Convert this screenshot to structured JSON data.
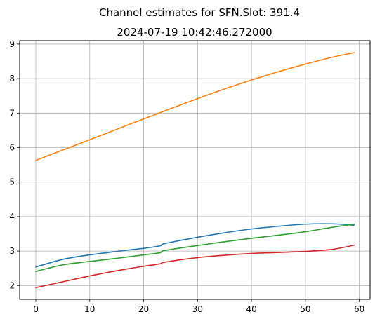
{
  "chart_data": {
    "type": "line",
    "suptitle": "Channel estimates for SFN.Slot: 391.4",
    "title": "2024-07-19 10:42:46.272000",
    "xlabel": "",
    "ylabel": "",
    "xlim": [
      -3,
      62
    ],
    "ylim": [
      1.6,
      9.1
    ],
    "xticks": [
      0,
      10,
      20,
      30,
      40,
      50,
      60
    ],
    "yticks": [
      2,
      3,
      4,
      5,
      6,
      7,
      8,
      9
    ],
    "grid": true,
    "legend": false,
    "colors": [
      "#1f77b4",
      "#ff7f0e",
      "#2ca02c",
      "#d62728"
    ],
    "x": [
      0,
      5,
      10,
      15,
      20,
      23,
      24,
      30,
      35,
      40,
      45,
      50,
      55,
      59
    ],
    "series": [
      {
        "values": [
          2.54,
          2.76,
          2.89,
          2.99,
          3.08,
          3.15,
          3.22,
          3.4,
          3.53,
          3.64,
          3.72,
          3.78,
          3.79,
          3.75
        ]
      },
      {
        "values": [
          5.63,
          5.93,
          6.23,
          6.53,
          6.83,
          7.01,
          7.07,
          7.42,
          7.7,
          7.96,
          8.2,
          8.42,
          8.62,
          8.75
        ]
      },
      {
        "values": [
          2.41,
          2.6,
          2.7,
          2.79,
          2.89,
          2.95,
          3.02,
          3.16,
          3.27,
          3.37,
          3.46,
          3.56,
          3.69,
          3.78
        ]
      },
      {
        "values": [
          1.94,
          2.11,
          2.28,
          2.43,
          2.56,
          2.63,
          2.68,
          2.81,
          2.88,
          2.93,
          2.96,
          2.99,
          3.05,
          3.17
        ]
      }
    ]
  }
}
